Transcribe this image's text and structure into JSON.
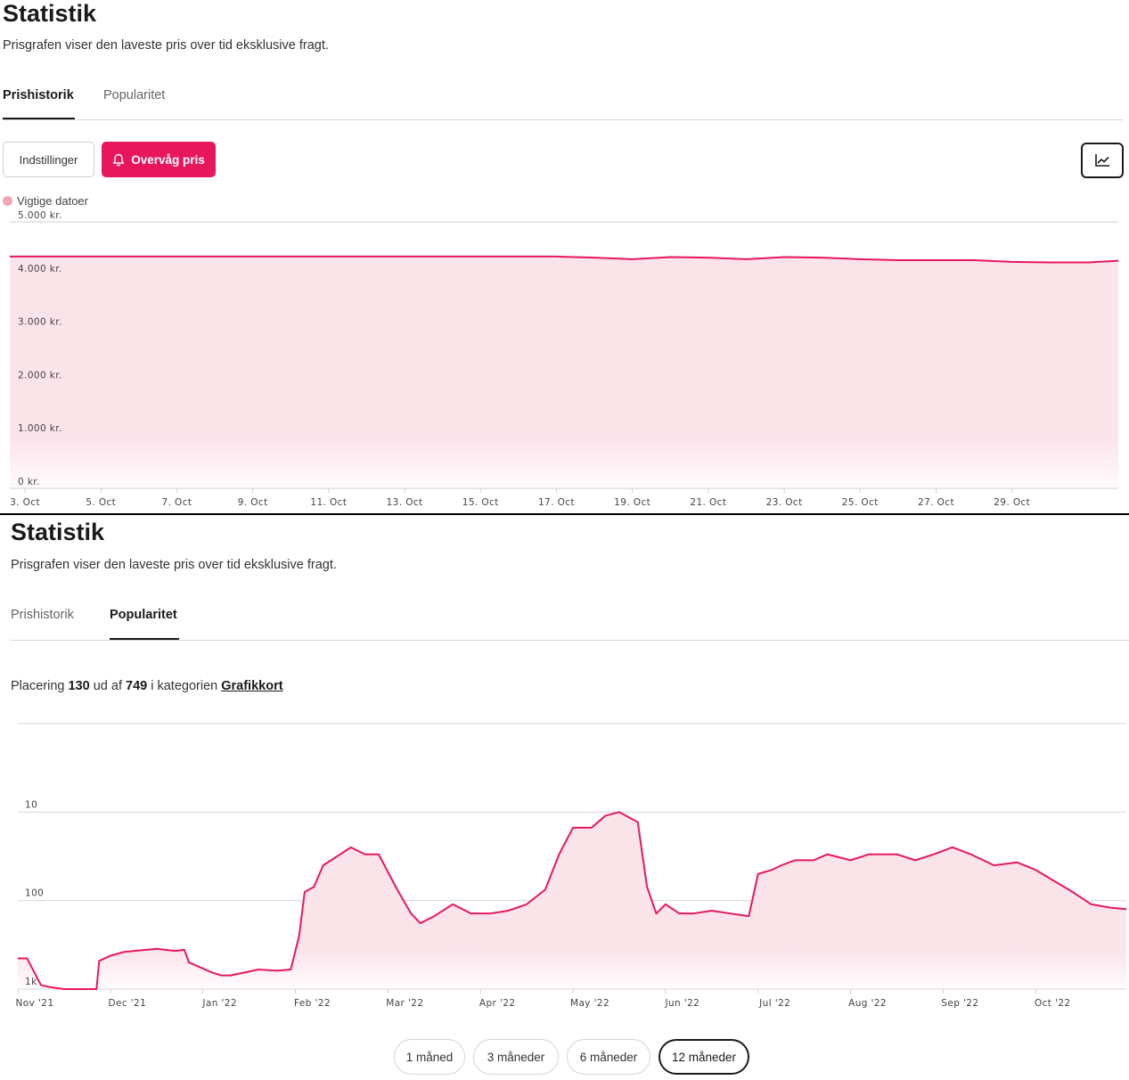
{
  "panel1": {
    "title": "Statistik",
    "subtitle": "Prisgrafen viser den laveste pris over tid eksklusive fragt.",
    "tabs": [
      {
        "label": "Prishistorik",
        "active": true
      },
      {
        "label": "Popularitet",
        "active": false
      }
    ],
    "settings_label": "Indstillinger",
    "watch_label": "Overvåg pris",
    "chart_icon": "line-chart-icon",
    "bell_icon": "bell-icon",
    "legend_label": "Vigtige datoer",
    "colors": {
      "accent": "#e8175d",
      "fill": "#fbe3ea",
      "legend_dot": "#f3a5b3"
    }
  },
  "panel2": {
    "title": "Statistik",
    "subtitle": "Prisgrafen viser den laveste pris over tid eksklusive fragt.",
    "tabs": [
      {
        "label": "Prishistorik",
        "active": false
      },
      {
        "label": "Popularitet",
        "active": true
      }
    ],
    "ranking": {
      "prefix": "Placering",
      "rank": "130",
      "middle": "ud af",
      "total": "749",
      "category_prefix": "i kategorien",
      "category": "Grafikkort"
    },
    "ranges": [
      {
        "label": "1 måned",
        "active": false
      },
      {
        "label": "3 måneder",
        "active": false
      },
      {
        "label": "6 måneder",
        "active": false
      },
      {
        "label": "12 måneder",
        "active": true
      }
    ]
  },
  "chart_data": [
    {
      "type": "area",
      "ytick_labels": [
        "0 kr.",
        "1.000 kr.",
        "2.000 kr.",
        "3.000 kr.",
        "4.000 kr.",
        "5.000 kr."
      ],
      "yticks": [
        0,
        1000,
        2000,
        3000,
        4000,
        5000
      ],
      "ylim": [
        0,
        5000
      ],
      "xtick_labels": [
        "3. Oct",
        "5. Oct",
        "7. Oct",
        "9. Oct",
        "11. Oct",
        "13. Oct",
        "15. Oct",
        "17. Oct",
        "19. Oct",
        "21. Oct",
        "23. Oct",
        "25. Oct",
        "27. Oct",
        "29. Oct"
      ],
      "xticks": [
        3,
        5,
        7,
        9,
        11,
        13,
        15,
        17,
        19,
        21,
        23,
        25,
        27,
        29
      ],
      "xlim": [
        2.6,
        31.8
      ],
      "x": [
        2.6,
        4,
        6,
        8,
        10,
        12,
        14,
        16,
        17,
        18,
        19,
        20,
        21,
        22,
        23,
        24,
        25,
        26,
        27,
        28,
        29,
        30,
        31,
        31.8
      ],
      "y": [
        4349,
        4349,
        4349,
        4349,
        4349,
        4349,
        4349,
        4349,
        4349,
        4330,
        4299,
        4340,
        4330,
        4299,
        4340,
        4330,
        4299,
        4280,
        4280,
        4280,
        4249,
        4240,
        4240,
        4270
      ],
      "grid": true
    },
    {
      "type": "area",
      "scale": "log-reversed",
      "ytick_labels": [
        "1k",
        "100",
        "10"
      ],
      "yticks": [
        1000,
        100,
        10
      ],
      "ylim": [
        1.0,
        1000
      ],
      "xtick_labels": [
        "Nov '21",
        "Dec '21",
        "Jan '22",
        "Feb '22",
        "Mar '22",
        "Apr '22",
        "May '22",
        "Jun '22",
        "Jul '22",
        "Aug '22",
        "Sep '22",
        "Oct '22"
      ],
      "xticks": [
        0,
        1,
        2,
        3,
        4,
        5,
        6,
        7,
        8,
        9,
        10,
        11
      ],
      "xlim": [
        0,
        11.98
      ],
      "x": [
        0,
        0.1,
        0.25,
        0.35,
        0.5,
        0.85,
        0.88,
        1.0,
        1.15,
        1.5,
        1.7,
        1.8,
        1.85,
        2.1,
        2.2,
        2.3,
        2.45,
        2.6,
        2.8,
        2.95,
        3.04,
        3.1,
        3.2,
        3.3,
        3.6,
        3.75,
        3.9,
        4.1,
        4.25,
        4.35,
        4.5,
        4.7,
        4.9,
        5.1,
        5.3,
        5.5,
        5.7,
        5.85,
        6.0,
        6.2,
        6.35,
        6.5,
        6.7,
        6.8,
        6.9,
        7.0,
        7.15,
        7.3,
        7.5,
        7.7,
        7.9,
        8.0,
        8.15,
        8.25,
        8.4,
        8.6,
        8.75,
        9.0,
        9.2,
        9.5,
        9.7,
        9.9,
        10.1,
        10.3,
        10.55,
        10.8,
        11.0,
        11.2,
        11.4,
        11.6,
        11.8,
        11.98
      ],
      "y": [
        450,
        450,
        900,
        950,
        1000,
        1000,
        480,
        420,
        380,
        350,
        370,
        360,
        500,
        650,
        700,
        700,
        650,
        600,
        620,
        600,
        250,
        80,
        70,
        40,
        25,
        30,
        30,
        75,
        140,
        180,
        150,
        110,
        140,
        140,
        130,
        110,
        75,
        30,
        15,
        15,
        11,
        10,
        13,
        70,
        140,
        110,
        140,
        140,
        130,
        140,
        150,
        50,
        45,
        40,
        35,
        35,
        30,
        35,
        30,
        30,
        35,
        30,
        25,
        30,
        40,
        37,
        45,
        60,
        80,
        110,
        120,
        125
      ],
      "grid": true
    }
  ]
}
